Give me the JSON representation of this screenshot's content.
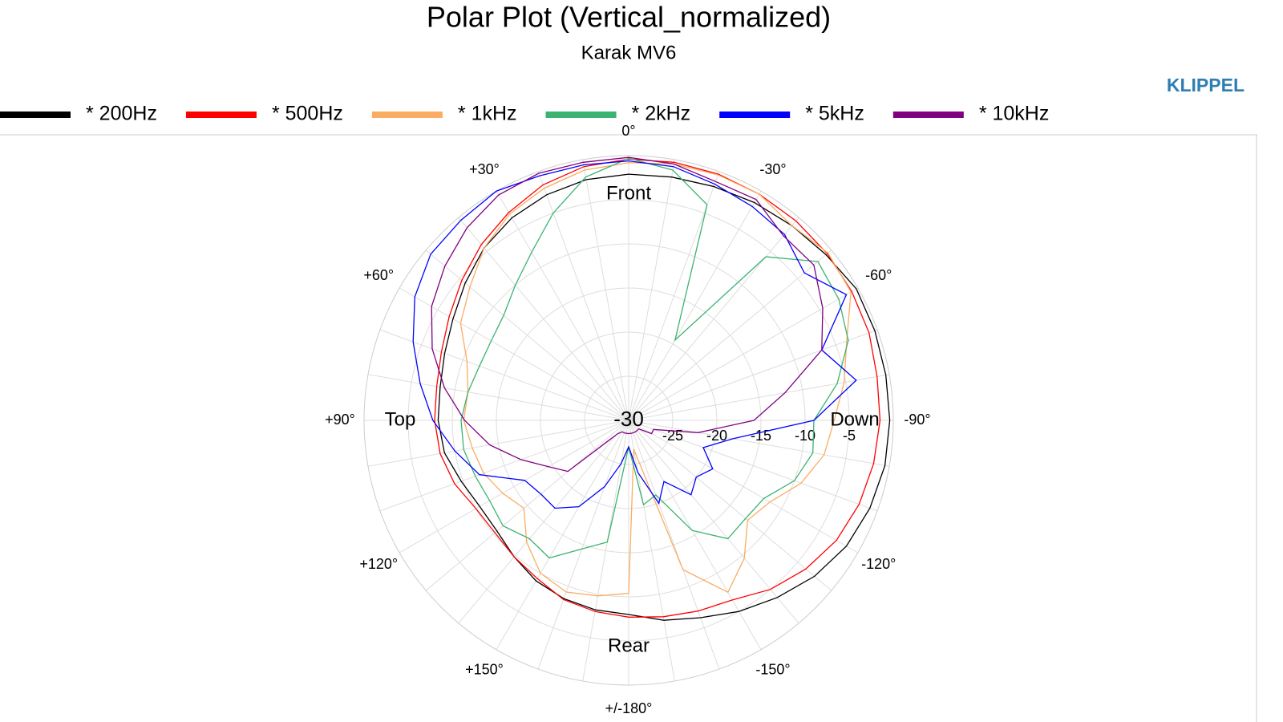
{
  "chart_data": {
    "type": "polar",
    "title": "Polar Plot (Vertical_normalized)",
    "subtitle": "Karak MV6",
    "brand": "KLIPPEL",
    "annotations": [
      "Front",
      "Top",
      "Rear",
      "Down"
    ],
    "x": [
      0,
      10,
      20,
      30,
      40,
      50,
      60,
      70,
      80,
      90,
      100,
      110,
      120,
      130,
      140,
      150,
      160,
      170,
      180,
      -170,
      -160,
      -150,
      -140,
      -130,
      -120,
      -110,
      -100,
      -90,
      -80,
      -70,
      -60,
      -50,
      -40,
      -30,
      -20,
      -10
    ],
    "xticks": [
      {
        "value": 0,
        "label": "0°"
      },
      {
        "value": 30,
        "label": "+30°"
      },
      {
        "value": 60,
        "label": "+60°"
      },
      {
        "value": 90,
        "label": "+90°"
      },
      {
        "value": 120,
        "label": "+120°"
      },
      {
        "value": 150,
        "label": "+150°"
      },
      {
        "value": 180,
        "label": "+/-180°"
      },
      {
        "value": -150,
        "label": "-150°"
      },
      {
        "value": -120,
        "label": "-120°"
      },
      {
        "value": -90,
        "label": "-90°"
      },
      {
        "value": -60,
        "label": "-60°"
      },
      {
        "value": -30,
        "label": "-30°"
      }
    ],
    "rlim": [
      -30,
      0
    ],
    "rticks": [
      -30,
      -25,
      -20,
      -15,
      -10,
      -5
    ],
    "series": [
      {
        "name": "* 200Hz",
        "color": "#000000",
        "values": [
          -2.1,
          -2.3,
          -2.8,
          -3.5,
          -4.5,
          -5.8,
          -7.0,
          -7.8,
          -8.3,
          -8.4,
          -8.8,
          -9.8,
          -10.5,
          -10.5,
          -9.8,
          -9.0,
          -8.5,
          -8.2,
          -8.0,
          -7.0,
          -6.2,
          -5.0,
          -3.8,
          -2.5,
          -1.5,
          -0.9,
          -0.5,
          -0.4,
          -0.4,
          -0.3,
          -0.2,
          -0.8,
          -1.2,
          -1.5,
          -1.8,
          -2.0
        ]
      },
      {
        "name": "* 500Hz",
        "color": "#ff0000",
        "values": [
          -0.4,
          -0.8,
          -1.6,
          -2.8,
          -4.0,
          -5.3,
          -6.5,
          -7.4,
          -7.9,
          -8.0,
          -8.3,
          -9.0,
          -10.0,
          -10.2,
          -9.8,
          -9.3,
          -8.4,
          -8.0,
          -7.7,
          -7.4,
          -7.0,
          -6.5,
          -5.0,
          -3.8,
          -2.8,
          -2.2,
          -1.8,
          -1.5,
          -1.4,
          -1.0,
          -0.8,
          -0.6,
          -0.5,
          -0.4,
          -0.3,
          -0.3
        ]
      },
      {
        "name": "* 1kHz",
        "color": "#fbac63",
        "values": [
          -0.8,
          -1.2,
          -2.0,
          -3.0,
          -4.5,
          -6.5,
          -8.0,
          -10.5,
          -11.5,
          -11.3,
          -12,
          -12.5,
          -13.5,
          -14.5,
          -12,
          -10,
          -9.3,
          -9.8,
          -10.4,
          -26.7,
          -12,
          -7.5,
          -9.6,
          -12.4,
          -11.5,
          -9.2,
          -7.5,
          -6.7,
          -5.2,
          -3.7,
          -0.9,
          -0.5,
          -1.2,
          -0.4,
          -0.4,
          -0.5
        ]
      },
      {
        "name": "* 2kHz",
        "color": "#3cb371",
        "values": [
          -0.3,
          -2,
          -5,
          -8,
          -10,
          -11.5,
          -12,
          -12,
          -11.5,
          -11,
          -11,
          -11.5,
          -11.8,
          -11.4,
          -12.5,
          -12,
          -14.5,
          -16,
          -27,
          -20.3,
          -21,
          -15.6,
          -12.5,
          -12.7,
          -12.3,
          -10,
          -8.8,
          -9,
          -6,
          -3.5,
          -2.5,
          -2,
          -5.8,
          -19.5,
          -4,
          -1.2
        ]
      },
      {
        "name": "* 5kHz",
        "color": "#0000ff",
        "values": [
          -0.6,
          -0.6,
          -0.5,
          0,
          -0.4,
          -0.7,
          -2,
          -4,
          -6,
          -7.8,
          -10,
          -12,
          -16.4,
          -17,
          -17,
          -18.7,
          -22,
          -25,
          -27,
          -24,
          -20,
          -22,
          -19,
          -20,
          -19,
          -21,
          -18,
          -9,
          -3.8,
          -6.7,
          -1.5,
          -4,
          -2.5,
          -2,
          -1.5,
          -0.8
        ]
      },
      {
        "name": "* 10kHz",
        "color": "#800080",
        "values": [
          -0.2,
          -0.3,
          -0.2,
          -0.5,
          -1.5,
          -2.8,
          -4.2,
          -6.3,
          -8.8,
          -11.4,
          -14,
          -17,
          -19.5,
          -21,
          -28,
          -28.5,
          -28.5,
          -28.5,
          -28.5,
          -28.5,
          -28.5,
          -28.5,
          -28.5,
          -28.5,
          -27,
          -27,
          -22,
          -15.8,
          -12,
          -6.7,
          -4.6,
          -2.6,
          -2.7,
          -1.1,
          -1.2,
          -0.5
        ]
      }
    ]
  }
}
